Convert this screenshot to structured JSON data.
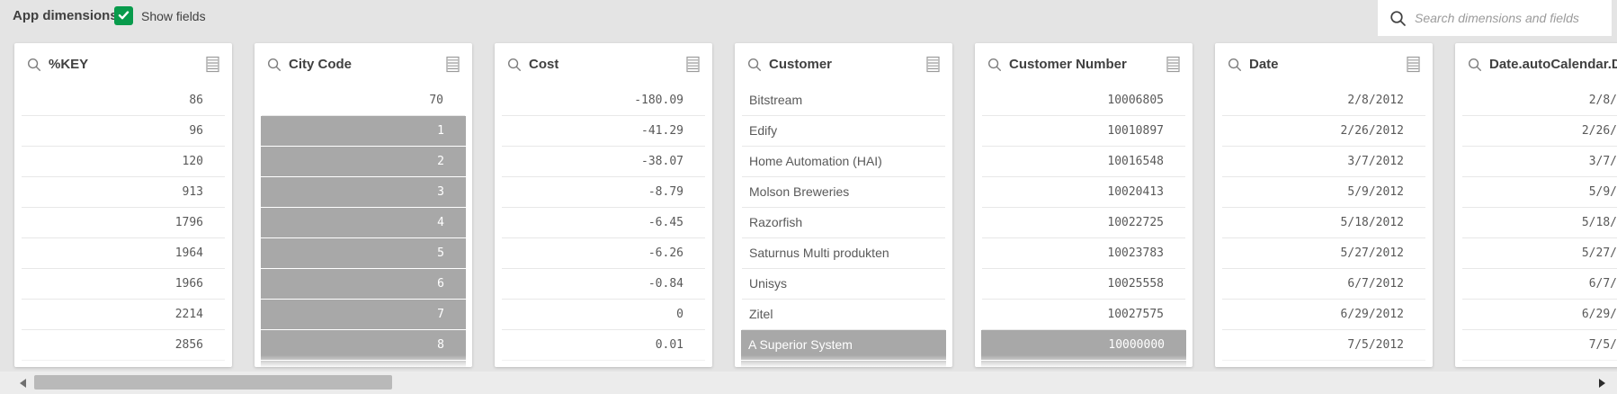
{
  "topbar": {
    "title": "App dimensions",
    "show_fields": {
      "label": "Show fields",
      "checked": true
    },
    "search": {
      "placeholder": "Search dimensions and fields"
    }
  },
  "colors": {
    "checkbox_green": "#089b4c",
    "selected_value_gray": "#a8a8a8",
    "background": "#e4e4e4"
  },
  "cards": [
    {
      "title": "%KEY",
      "align": "right",
      "values": [
        {
          "text": "86"
        },
        {
          "text": "96"
        },
        {
          "text": "120"
        },
        {
          "text": "913"
        },
        {
          "text": "1796"
        },
        {
          "text": "1964"
        },
        {
          "text": "1966"
        },
        {
          "text": "2214"
        },
        {
          "text": "2856"
        }
      ]
    },
    {
      "title": "City Code",
      "align": "right",
      "values": [
        {
          "text": "70"
        },
        {
          "text": "1",
          "selected": true
        },
        {
          "text": "2",
          "selected": true
        },
        {
          "text": "3",
          "selected": true
        },
        {
          "text": "4",
          "selected": true
        },
        {
          "text": "5",
          "selected": true
        },
        {
          "text": "6",
          "selected": true
        },
        {
          "text": "7",
          "selected": true
        },
        {
          "text": "8",
          "selected": true
        },
        {
          "text": "",
          "selected": true
        }
      ]
    },
    {
      "title": "Cost",
      "align": "right",
      "values": [
        {
          "text": "-180.09"
        },
        {
          "text": "-41.29"
        },
        {
          "text": "-38.07"
        },
        {
          "text": "-8.79"
        },
        {
          "text": "-6.45"
        },
        {
          "text": "-6.26"
        },
        {
          "text": "-0.84"
        },
        {
          "text": "0"
        },
        {
          "text": "0.01"
        }
      ]
    },
    {
      "title": "Customer",
      "align": "left",
      "values": [
        {
          "text": "Bitstream"
        },
        {
          "text": "Edify"
        },
        {
          "text": "Home Automation (HAI)"
        },
        {
          "text": "Molson Breweries"
        },
        {
          "text": "Razorfish"
        },
        {
          "text": "Saturnus Multi produkten"
        },
        {
          "text": "Unisys"
        },
        {
          "text": "Zitel"
        },
        {
          "text": "A Superior System",
          "selected": true
        },
        {
          "text": "",
          "selected": true
        }
      ]
    },
    {
      "title": "Customer Number",
      "align": "right",
      "values": [
        {
          "text": "10006805"
        },
        {
          "text": "10010897"
        },
        {
          "text": "10016548"
        },
        {
          "text": "10020413"
        },
        {
          "text": "10022725"
        },
        {
          "text": "10023783"
        },
        {
          "text": "10025558"
        },
        {
          "text": "10027575"
        },
        {
          "text": "10000000",
          "selected": true
        },
        {
          "text": "",
          "selected": true
        }
      ]
    },
    {
      "title": "Date",
      "align": "right",
      "values": [
        {
          "text": "2/8/2012"
        },
        {
          "text": "2/26/2012"
        },
        {
          "text": "3/7/2012"
        },
        {
          "text": "5/9/2012"
        },
        {
          "text": "5/18/2012"
        },
        {
          "text": "5/27/2012"
        },
        {
          "text": "6/7/2012"
        },
        {
          "text": "6/29/2012"
        },
        {
          "text": "7/5/2012"
        }
      ]
    },
    {
      "title": "Date.autoCalendar.D",
      "align": "right",
      "clipped": true,
      "values": [
        {
          "text": "2/8/"
        },
        {
          "text": "2/26/"
        },
        {
          "text": "3/7/"
        },
        {
          "text": "5/9/"
        },
        {
          "text": "5/18/"
        },
        {
          "text": "5/27/"
        },
        {
          "text": "6/7/"
        },
        {
          "text": "6/29/"
        },
        {
          "text": "7/5/"
        }
      ]
    }
  ]
}
